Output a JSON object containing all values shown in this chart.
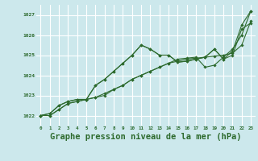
{
  "background_color": "#cce8ec",
  "grid_color": "#ffffff",
  "line_color": "#2d6a2d",
  "marker_color": "#2d6a2d",
  "xlabel": "Graphe pression niveau de la mer (hPa)",
  "xlabel_fontsize": 7.5,
  "ylim": [
    1021.5,
    1027.5
  ],
  "xlim": [
    -0.5,
    23.5
  ],
  "yticks": [
    1022,
    1023,
    1024,
    1025,
    1026,
    1027
  ],
  "xticks": [
    0,
    1,
    2,
    3,
    4,
    5,
    6,
    7,
    8,
    9,
    10,
    11,
    12,
    13,
    14,
    15,
    16,
    17,
    18,
    19,
    20,
    21,
    22,
    23
  ],
  "series": [
    [
      1022.0,
      1022.1,
      1022.5,
      1022.7,
      1022.8,
      1022.8,
      1023.5,
      1023.8,
      1024.2,
      1024.6,
      1025.0,
      1025.5,
      1025.3,
      1025.0,
      1025.0,
      1024.65,
      1024.7,
      1024.8,
      1024.9,
      1025.3,
      1024.8,
      1025.2,
      1026.5,
      1027.2
    ],
    [
      1022.0,
      1022.1,
      1022.5,
      1022.7,
      1022.8,
      1022.8,
      1023.5,
      1023.8,
      1024.2,
      1024.6,
      1025.0,
      1025.5,
      1025.3,
      1025.0,
      1025.0,
      1024.65,
      1024.7,
      1024.8,
      1024.9,
      1025.3,
      1024.8,
      1025.0,
      1026.3,
      1026.6
    ],
    [
      1022.0,
      1022.0,
      1022.3,
      1022.6,
      1022.7,
      1022.8,
      1022.9,
      1023.0,
      1023.3,
      1023.5,
      1023.8,
      1024.0,
      1024.2,
      1024.4,
      1024.6,
      1024.7,
      1024.8,
      1024.85,
      1024.9,
      1024.95,
      1025.0,
      1025.1,
      1025.5,
      1026.7
    ],
    [
      1022.0,
      1022.0,
      1022.3,
      1022.6,
      1022.7,
      1022.8,
      1022.9,
      1023.1,
      1023.3,
      1023.5,
      1023.8,
      1024.0,
      1024.2,
      1024.4,
      1024.6,
      1024.8,
      1024.85,
      1024.9,
      1024.4,
      1024.5,
      1024.9,
      1025.3,
      1026.0,
      1027.2
    ]
  ]
}
